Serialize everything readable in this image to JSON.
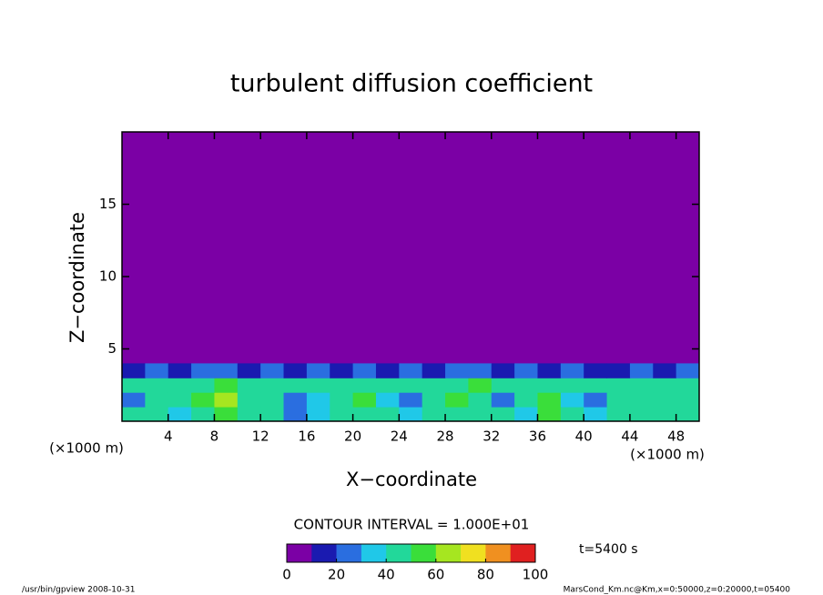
{
  "chart_data": {
    "type": "heatmap",
    "title": "turbulent diffusion coefficient",
    "xlabel": "X−coordinate",
    "ylabel": "Z−coordinate",
    "x_unit_left": "(×1000 m)",
    "x_unit_right": "(×1000 m)",
    "xlim": [
      0,
      50
    ],
    "xticks": [
      4,
      8,
      12,
      16,
      20,
      24,
      28,
      32,
      36,
      40,
      44,
      48
    ],
    "ylim": [
      0,
      20
    ],
    "yticks": [
      5,
      10,
      15
    ],
    "z": [
      [
        40,
        45,
        30,
        45,
        50,
        42,
        45,
        25,
        35,
        48,
        45,
        40,
        30,
        42,
        48,
        45,
        40,
        38,
        50,
        45,
        35,
        42,
        45,
        40,
        42
      ],
      [
        25,
        45,
        40,
        50,
        60,
        45,
        40,
        20,
        30,
        45,
        50,
        30,
        25,
        45,
        55,
        42,
        28,
        45,
        55,
        30,
        25,
        45,
        40,
        45,
        40
      ],
      [
        45,
        40,
        45,
        42,
        50,
        45,
        42,
        45,
        40,
        45,
        42,
        45,
        40,
        45,
        42,
        50,
        45,
        42,
        45,
        40,
        45,
        42,
        45,
        45,
        42
      ],
      [
        15,
        20,
        15,
        20,
        25,
        15,
        20,
        15,
        20,
        15,
        25,
        15,
        20,
        15,
        20,
        20,
        15,
        25,
        15,
        20,
        15,
        15,
        20,
        15,
        20
      ]
    ],
    "colorscale": [
      "#7b00a5",
      "#1a1ab0",
      "#2a6ee0",
      "#20c8e8",
      "#22d89a",
      "#3ade3a",
      "#a6e620",
      "#f0e020",
      "#f09020",
      "#e02020"
    ],
    "colorbar_lim": [
      0,
      100
    ],
    "colorbar_ticks": [
      0,
      20,
      40,
      60,
      80,
      100
    ],
    "contour_interval": "CONTOUR INTERVAL = 1.000E+01",
    "time_label": "t=5400 s",
    "footer_left": "/usr/bin/gpview  2008-10-31",
    "footer_right": "MarsCond_Km.nc@Km,x=0:50000,z=0:20000,t=05400"
  }
}
